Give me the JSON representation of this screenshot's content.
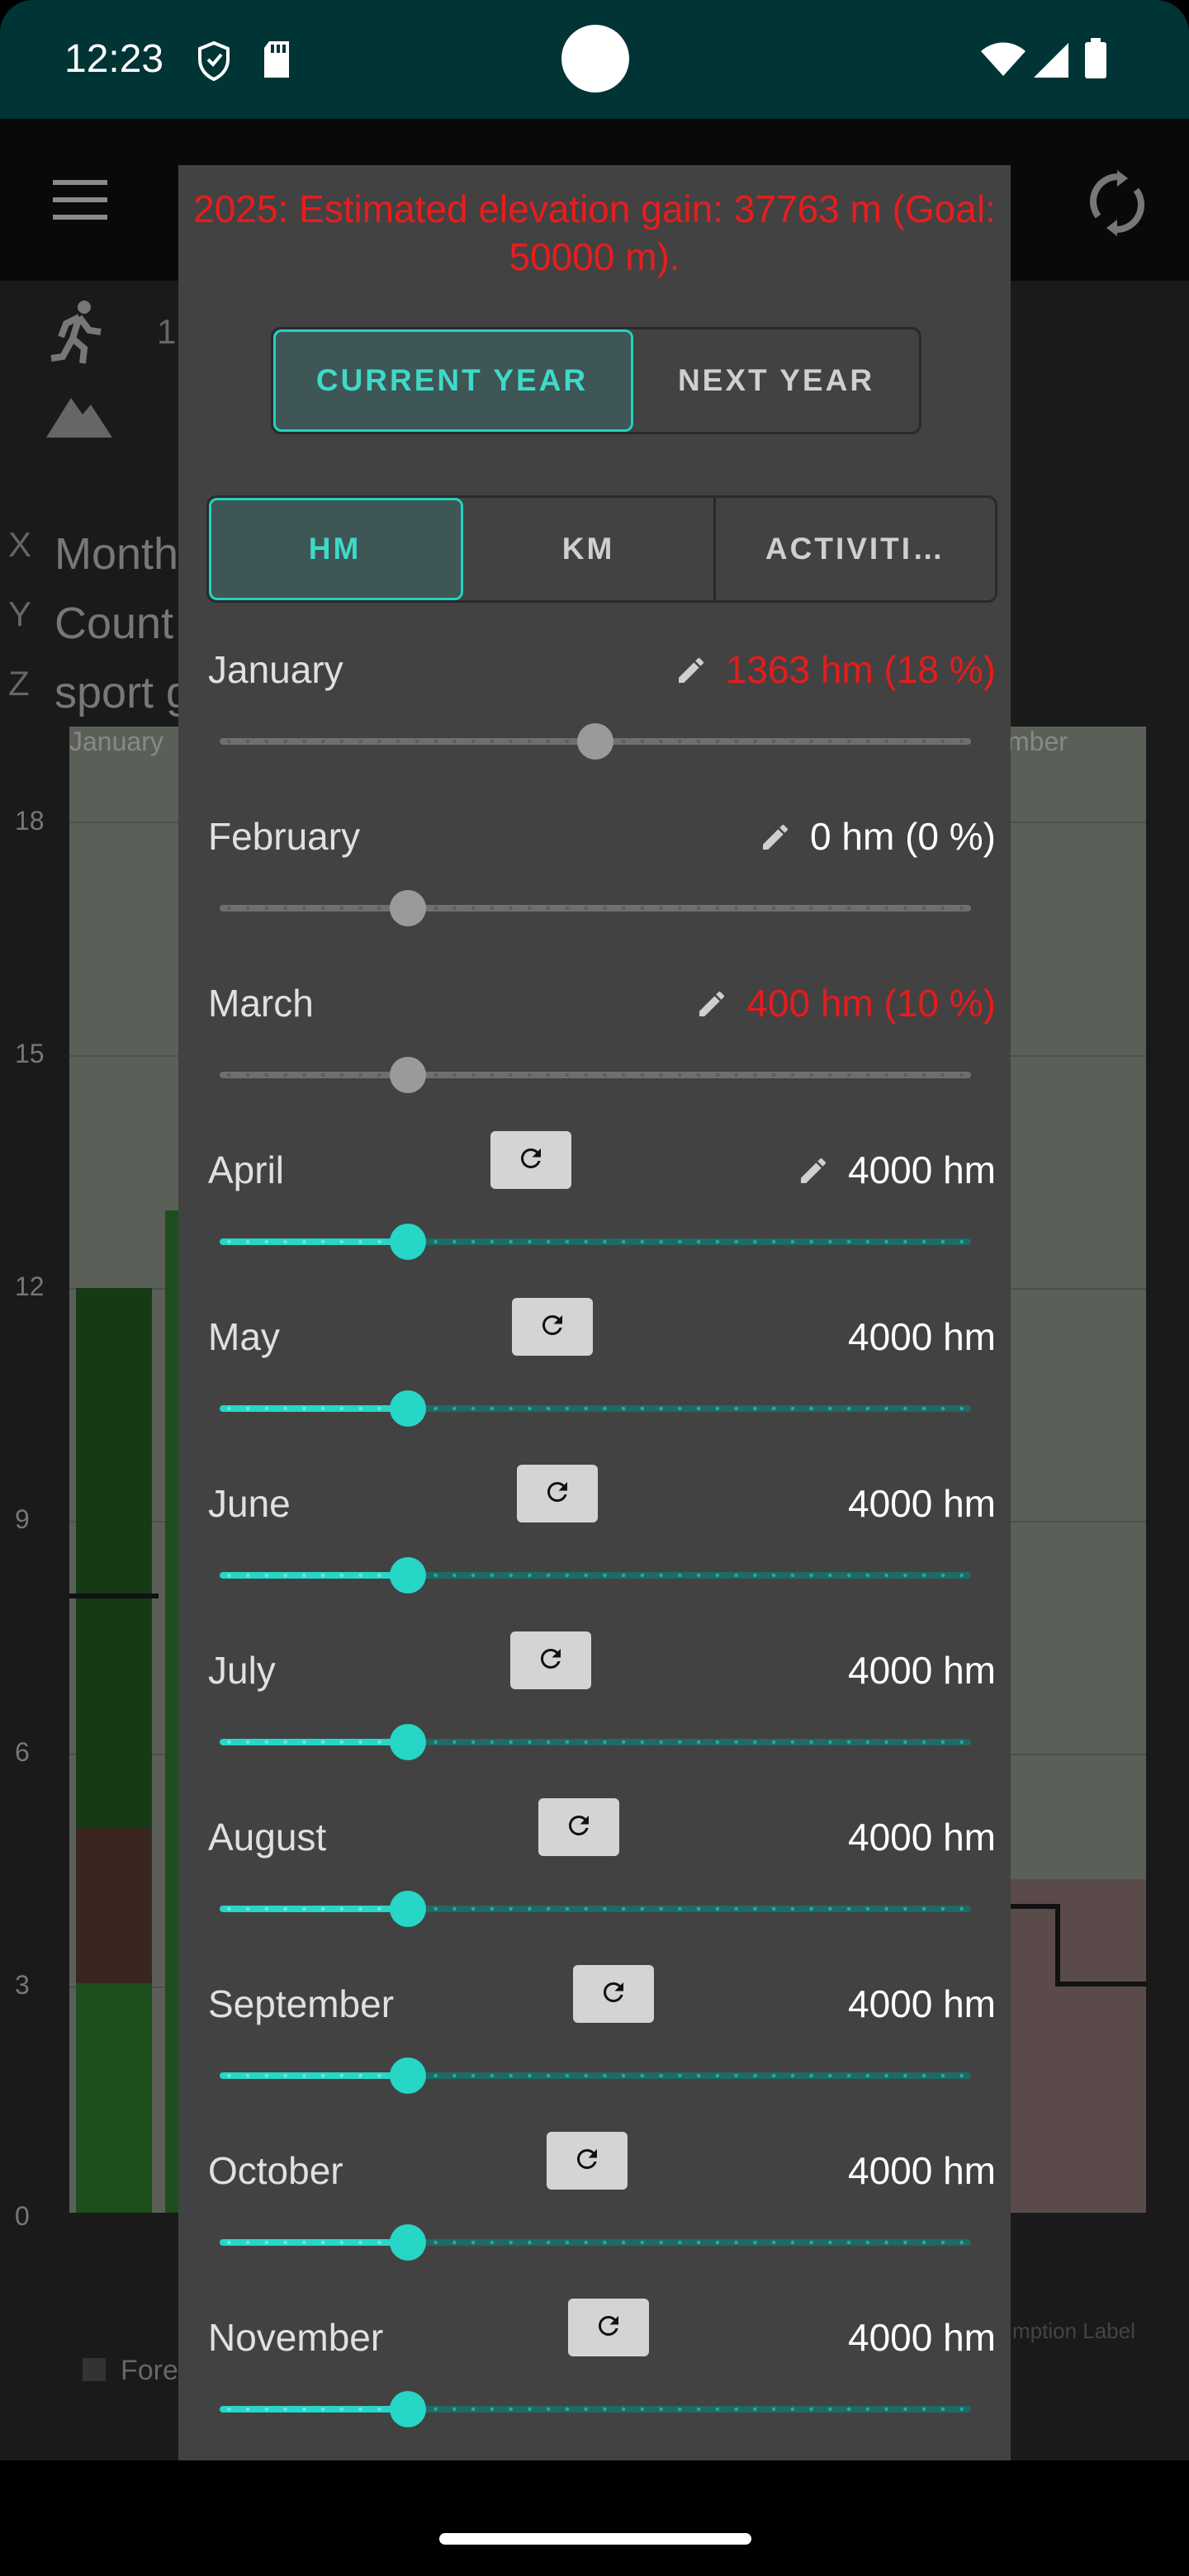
{
  "status_bar": {
    "time": "12:23"
  },
  "background": {
    "axis_letters": [
      "X",
      "Y",
      "Z"
    ],
    "axis_texts": [
      "Month",
      "Count",
      "sport g"
    ],
    "first_col": "January",
    "last_col": "mber",
    "y_ticks": [
      "18",
      "15",
      "12",
      "9",
      "6",
      "3",
      "0"
    ],
    "peek_digit": "1",
    "legend": "Fore",
    "legend_right": "mption Label"
  },
  "dialog": {
    "goal_text": "2025: Estimated elevation gain: 37763 m (Goal: 50000 m).",
    "year_tabs": [
      {
        "label": "CURRENT YEAR",
        "active": true
      },
      {
        "label": "NEXT YEAR",
        "active": false
      }
    ],
    "unit_tabs": [
      {
        "label": "HM",
        "active": true
      },
      {
        "label": "KM",
        "active": false
      },
      {
        "label": "ACTIVITI…",
        "active": false
      }
    ],
    "months": [
      {
        "name": "January",
        "value": "1363 hm (18 %)",
        "red": true,
        "edit": true,
        "reset": false,
        "fraction": 0.5,
        "style": "grey"
      },
      {
        "name": "February",
        "value": "0 hm (0 %)",
        "red": false,
        "edit": true,
        "reset": false,
        "fraction": 0.25,
        "style": "grey"
      },
      {
        "name": "March",
        "value": "400 hm (10 %)",
        "red": true,
        "edit": true,
        "reset": false,
        "fraction": 0.25,
        "style": "grey"
      },
      {
        "name": "April",
        "value": "4000 hm",
        "red": false,
        "edit": true,
        "reset": true,
        "fraction": 0.25,
        "style": "teal"
      },
      {
        "name": "May",
        "value": "4000 hm",
        "red": false,
        "edit": false,
        "reset": true,
        "fraction": 0.25,
        "style": "teal"
      },
      {
        "name": "June",
        "value": "4000 hm",
        "red": false,
        "edit": false,
        "reset": true,
        "fraction": 0.25,
        "style": "teal"
      },
      {
        "name": "July",
        "value": "4000 hm",
        "red": false,
        "edit": false,
        "reset": true,
        "fraction": 0.25,
        "style": "teal"
      },
      {
        "name": "August",
        "value": "4000 hm",
        "red": false,
        "edit": false,
        "reset": true,
        "fraction": 0.25,
        "style": "teal"
      },
      {
        "name": "September",
        "value": "4000 hm",
        "red": false,
        "edit": false,
        "reset": true,
        "fraction": 0.25,
        "style": "teal"
      },
      {
        "name": "October",
        "value": "4000 hm",
        "red": false,
        "edit": false,
        "reset": true,
        "fraction": 0.25,
        "style": "teal"
      },
      {
        "name": "November",
        "value": "4000 hm",
        "red": false,
        "edit": false,
        "reset": true,
        "fraction": 0.25,
        "style": "teal"
      }
    ]
  }
}
